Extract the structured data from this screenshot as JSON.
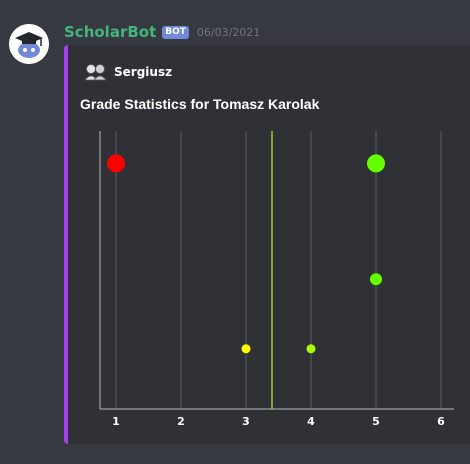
{
  "message": {
    "username": "ScholarBot",
    "bot_tag": "BOT",
    "timestamp": "06/03/2021",
    "avatar_icon": "graduation-cap-icon"
  },
  "embed": {
    "accent_color": "#a641f0",
    "author_name": "Sergiusz",
    "author_icon": "people-avatar-icon",
    "title": "Grade Statistics for Tomasz Karolak"
  },
  "chart_data": {
    "type": "scatter",
    "title": "",
    "xlabel": "",
    "ylabel": "",
    "xlim": [
      1,
      6
    ],
    "x_ticks": [
      1,
      2,
      3,
      4,
      5,
      6
    ],
    "ylim": [
      0,
      6
    ],
    "grid": "vertical",
    "mean_line": {
      "x": 3.4,
      "color": "#9acd32"
    },
    "points": [
      {
        "x": 1,
        "y": 5.3,
        "size": "large",
        "color": "#ff0000"
      },
      {
        "x": 5,
        "y": 5.3,
        "size": "large",
        "color": "#66ff00"
      },
      {
        "x": 5,
        "y": 2.8,
        "size": "medium",
        "color": "#66ff00"
      },
      {
        "x": 3,
        "y": 1.3,
        "size": "small",
        "color": "#ffff00"
      },
      {
        "x": 4,
        "y": 1.3,
        "size": "small",
        "color": "#aaff00"
      }
    ]
  }
}
